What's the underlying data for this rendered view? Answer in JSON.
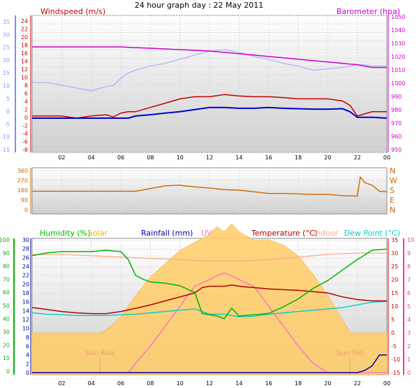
{
  "title": "24 hour graph day : 22 May 2011",
  "colors": {
    "windspeed": "#c00000",
    "wind_avg": "#0000cc",
    "barometer": "#cc00cc",
    "barometer_bg": "#a8b4ff",
    "direction": "#cc6600",
    "humidity": "#00b400",
    "solar": "#ffcc66",
    "rainfall": "#0000aa",
    "uv": "#ff66cc",
    "temperature": "#b00000",
    "indoor": "#ffaa88",
    "dewpoint": "#00cccc",
    "temp_axis": "#cc0000",
    "uv_axis": "#ff3399"
  },
  "hour_ticks": [
    "02",
    "04",
    "06",
    "08",
    "10",
    "12",
    "14",
    "16",
    "18",
    "20",
    "22",
    "00"
  ],
  "chart_data": [
    {
      "type": "line",
      "id": "wind_baro",
      "title": "",
      "left_label": "Windspeed (m/s)",
      "right_label": "Barometer (hpa)",
      "left_outer_ticks": [
        "35",
        "30",
        "25",
        "20",
        "15",
        "10",
        "5",
        "0",
        "-5",
        "-10",
        "-15"
      ],
      "left_inner_ticks": [
        "24",
        "22",
        "20",
        "18",
        "16",
        "14",
        "12",
        "10",
        "8",
        "6",
        "4",
        "2",
        "0",
        "-2",
        "-4",
        "-6",
        "-8"
      ],
      "right_ticks": [
        "1050",
        "1040",
        "1030",
        "1020",
        "1010",
        "1000",
        "990",
        "980",
        "970",
        "960",
        "950"
      ],
      "xlim": [
        0,
        24
      ],
      "ylim_wind": [
        -8,
        24
      ],
      "ylim_baro": [
        950,
        1050
      ],
      "series": [
        {
          "name": "Barometer (hpa)",
          "x": [
            0,
            1,
            2,
            3,
            4,
            5,
            6,
            7,
            8,
            9,
            10,
            11,
            12,
            13,
            14,
            15,
            16,
            17,
            18,
            19,
            20,
            21,
            22,
            23,
            24
          ],
          "values": [
            1027,
            1027,
            1027,
            1027,
            1027,
            1027,
            1027,
            1026.5,
            1026,
            1025.5,
            1025,
            1024.5,
            1024,
            1023,
            1022,
            1021,
            1020,
            1019,
            1018,
            1017,
            1016,
            1015,
            1014,
            1012,
            1012
          ]
        },
        {
          "name": "",
          "x": [
            0,
            1,
            2,
            3,
            4,
            5,
            5.5,
            6,
            6.5,
            7,
            8,
            9,
            10,
            11,
            12,
            13,
            14,
            15,
            16,
            17,
            18,
            19,
            20,
            21,
            22,
            22.5,
            23,
            24
          ],
          "values": [
            1001,
            1001,
            999,
            997,
            995,
            998,
            999,
            1004,
            1008,
            1010,
            1013,
            1015,
            1018,
            1021,
            1024,
            1025,
            1023,
            1020,
            1018,
            1015,
            1013,
            1010,
            1011,
            1012,
            1014,
            1014,
            1013,
            1013
          ]
        },
        {
          "name": "",
          "x": [
            0,
            1,
            2,
            3,
            4,
            5,
            5.5,
            6,
            6.5,
            7,
            8,
            9,
            10,
            11,
            12,
            13,
            14,
            15,
            16,
            17,
            18,
            19,
            20,
            21,
            21.5,
            22,
            22.5,
            23,
            24
          ],
          "values": [
            0.5,
            0.5,
            0.5,
            0,
            0.5,
            0.8,
            0.3,
            1.2,
            1.5,
            1.5,
            2.5,
            3.5,
            4.5,
            5,
            5,
            5.5,
            5.2,
            5,
            5,
            4.8,
            4.5,
            4.5,
            4.5,
            4,
            3,
            0.5,
            1,
            1.5,
            1.5
          ]
        },
        {
          "name": "",
          "x": [
            0,
            1,
            2,
            3,
            4,
            5,
            6,
            6.5,
            7,
            8,
            9,
            10,
            11,
            12,
            13,
            14,
            15,
            16,
            17,
            18,
            19,
            20,
            21,
            21.5,
            22,
            22.5,
            23,
            24
          ],
          "values": [
            0,
            0,
            0,
            0,
            0,
            0,
            0,
            0,
            0.5,
            0.8,
            1.2,
            1.5,
            2,
            2.5,
            2.5,
            2.3,
            2.3,
            2.5,
            2.3,
            2.2,
            2.1,
            2.1,
            2.2,
            1.5,
            0.2,
            0.2,
            0.2,
            0
          ]
        }
      ]
    },
    {
      "type": "line",
      "id": "direction",
      "title": "",
      "left_ticks": [
        "360",
        "270",
        "180",
        "90",
        "0"
      ],
      "right_ticks": [
        "N",
        "W",
        "S",
        "E",
        "N"
      ],
      "xlim": [
        0,
        24
      ],
      "ylim": [
        0,
        360
      ],
      "series": [
        {
          "name": "",
          "x": [
            0,
            1,
            2,
            3,
            4,
            5,
            6,
            7,
            8,
            9,
            10,
            11,
            12,
            13,
            14,
            15,
            16,
            17,
            18,
            19,
            20,
            21,
            22,
            22.2,
            22.5,
            23,
            23.5,
            24
          ],
          "values": [
            170,
            170,
            170,
            170,
            170,
            170,
            170,
            170,
            195,
            220,
            225,
            210,
            200,
            185,
            180,
            165,
            150,
            150,
            145,
            140,
            140,
            130,
            125,
            300,
            250,
            225,
            170,
            165
          ]
        }
      ]
    },
    {
      "type": "line",
      "id": "weather",
      "title": "",
      "labels": {
        "humidity": "Humidity (%)",
        "solar": "Solar",
        "rainfall": "Rainfall (mm)",
        "uv": "UV",
        "temperature": "Temperature (°C)",
        "indoor": "Indoor",
        "dewpoint": "Dew Point (°C)"
      },
      "humidity_ticks": [
        "100",
        "90",
        "80",
        "70",
        "60",
        "50",
        "40",
        "30",
        "20",
        "10",
        "0"
      ],
      "rain_ticks": [
        "30",
        "28",
        "26",
        "24",
        "22",
        "20",
        "18",
        "16",
        "14",
        "12",
        "10",
        "8",
        "6",
        "4",
        "2",
        "0"
      ],
      "temp_ticks": [
        "35",
        "30",
        "25",
        "20",
        "15",
        "10",
        "5",
        "0",
        "-5",
        "-10",
        "-15"
      ],
      "uv_ticks": [
        "10",
        "9",
        "8",
        "7",
        "6",
        "5",
        "4",
        "3",
        "2",
        "1",
        "0"
      ],
      "sun_rise_label": "Sun Rise",
      "sun_set_label": "Sun Set",
      "sun_rise_hour": 4.6,
      "sun_set_hour": 21.5,
      "xlim": [
        0,
        24
      ],
      "ylim_humidity": [
        0,
        100
      ],
      "ylim_temp": [
        -15,
        35
      ],
      "series": [
        {
          "name": "Humidity (%)",
          "x": [
            0,
            1,
            2,
            3,
            4,
            5,
            6,
            6.5,
            7,
            7.5,
            8,
            9,
            10,
            11,
            11.5,
            12,
            12.5,
            13,
            13.5,
            14,
            15,
            16,
            17,
            18,
            19,
            20,
            21,
            22,
            23,
            24
          ],
          "values": [
            88,
            90,
            91,
            91,
            91,
            92,
            91,
            85,
            73,
            70,
            68,
            67,
            65,
            60,
            44,
            43,
            42,
            40,
            48,
            42,
            43,
            44,
            49,
            55,
            63,
            69,
            77,
            85,
            92,
            93
          ]
        },
        {
          "name": "Solar",
          "x": [
            0,
            4.6,
            5,
            6,
            7,
            8,
            9,
            10,
            11,
            12,
            12.5,
            13,
            13.5,
            14,
            15,
            16,
            17,
            18,
            19,
            20,
            21,
            21.5,
            24
          ],
          "values": [
            0,
            0,
            1,
            6,
            14,
            21,
            26,
            31,
            34,
            37,
            40,
            38,
            41,
            38,
            35,
            35,
            33,
            29,
            22,
            14,
            5,
            0,
            0
          ]
        },
        {
          "name": "Temperature (°C)",
          "x": [
            0,
            1,
            2,
            3,
            4,
            5,
            6,
            7,
            8,
            9,
            10,
            11,
            11.5,
            12,
            13,
            13.5,
            14,
            15,
            16,
            17,
            18,
            19,
            20,
            21,
            22,
            23,
            24
          ],
          "values": [
            9.5,
            8.8,
            8.0,
            7.5,
            7.2,
            7.2,
            8.0,
            9.2,
            10.5,
            12.0,
            13.5,
            15.0,
            17.0,
            17.5,
            17.5,
            18.0,
            17.5,
            17.0,
            16.5,
            16.2,
            16.0,
            15.5,
            15.0,
            13.5,
            12.5,
            12.0,
            12.0
          ]
        },
        {
          "name": "Indoor",
          "x": [
            0,
            2,
            4,
            6,
            8,
            10,
            12,
            14,
            16,
            18,
            20,
            22,
            24
          ],
          "values": [
            29.5,
            29.5,
            29.0,
            28.5,
            28.0,
            27.5,
            27.0,
            27.0,
            27.5,
            28.5,
            29.5,
            30.0,
            30.0
          ]
        },
        {
          "name": "Dew Point (°C)",
          "x": [
            0,
            1,
            2,
            3,
            4,
            5,
            6,
            7,
            8,
            9,
            10,
            11,
            12,
            13,
            14,
            15,
            16,
            17,
            18,
            19,
            20,
            21,
            22,
            23,
            24
          ],
          "values": [
            7.5,
            7.0,
            6.8,
            6.5,
            6.5,
            6.5,
            6.8,
            7.0,
            7.5,
            8.0,
            8.5,
            9.0,
            7.0,
            7.0,
            6.0,
            6.2,
            7.0,
            7.5,
            8.0,
            8.5,
            9.0,
            9.5,
            10.5,
            11.5,
            11.8
          ]
        },
        {
          "name": "UV",
          "x": [
            0,
            6.5,
            7,
            8,
            9,
            10,
            11,
            12,
            12.5,
            13,
            13.5,
            14,
            15,
            16,
            17,
            18,
            19,
            20,
            24
          ],
          "values": [
            0,
            0,
            0.7,
            2,
            3.5,
            5,
            6.5,
            7,
            7.3,
            7.5,
            7.3,
            7,
            6.5,
            5,
            3.5,
            2,
            0.7,
            0,
            0
          ]
        },
        {
          "name": "Rainfall (mm)",
          "x": [
            0,
            21.5,
            22,
            22.5,
            23,
            23.5,
            24
          ],
          "values": [
            0,
            0,
            0,
            0.5,
            1.5,
            4,
            4
          ]
        }
      ]
    }
  ]
}
